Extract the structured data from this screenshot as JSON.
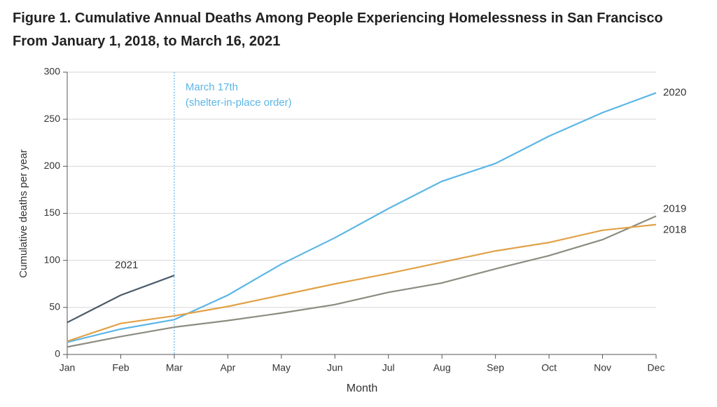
{
  "chart_data": {
    "type": "line",
    "title": "Figure 1.  Cumulative Annual Deaths Among People Experiencing Homelessness in San Francisco From January 1, 2018, to March 16, 2021",
    "x_label": "Month",
    "y_label": "Cumulative deaths per year",
    "annotation": [
      "March 17th",
      "(shelter-in-place order)"
    ],
    "categories": [
      "Jan",
      "Feb",
      "Mar",
      "Apr",
      "May",
      "Jun",
      "Jul",
      "Aug",
      "Sep",
      "Oct",
      "Nov",
      "Dec"
    ],
    "series": [
      {
        "name": "2020",
        "color": "#5bb6e6",
        "values": [
          13,
          27,
          37,
          63,
          96,
          124,
          155,
          184,
          203,
          232,
          257,
          278
        ]
      },
      {
        "name": "2019",
        "color": "#8c8c80",
        "values": [
          8,
          19,
          29,
          36,
          44,
          53,
          66,
          76,
          91,
          105,
          122,
          147
        ]
      },
      {
        "name": "2018",
        "color": "#e0a246",
        "values": [
          14,
          33,
          41,
          51,
          63,
          75,
          86,
          98,
          110,
          119,
          132,
          138
        ]
      },
      {
        "name": "2021",
        "color": "#4a5a6a",
        "values": [
          34,
          63,
          84,
          null,
          null,
          null,
          null,
          null,
          null,
          null,
          null,
          null
        ]
      }
    ],
    "ylim": [
      0,
      300
    ],
    "yticks": [
      0,
      50,
      100,
      150,
      200,
      250,
      300
    ],
    "grid": true
  }
}
